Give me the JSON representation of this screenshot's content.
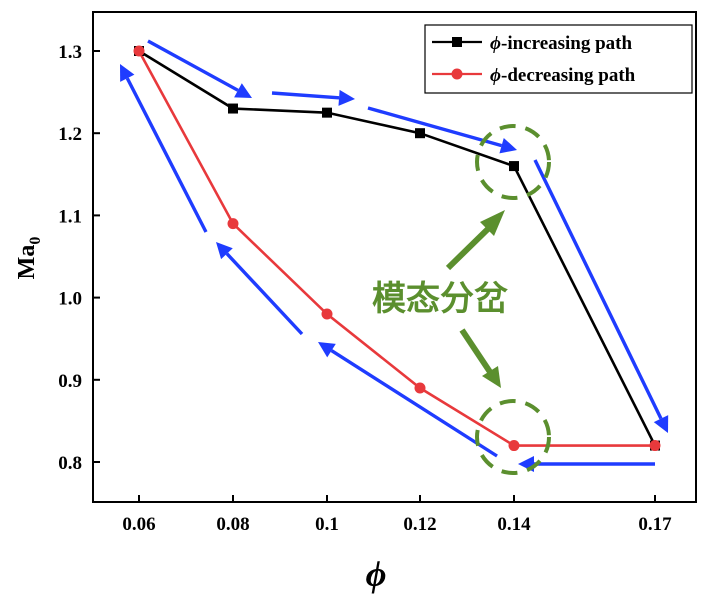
{
  "chart_data": {
    "type": "line",
    "xlabel": "ϕ",
    "ylabel": "Ma",
    "ylabel_sub": "0",
    "x_ticks": [
      "0.06",
      "0.08",
      "0.1",
      "0.12",
      "0.14",
      "0.17"
    ],
    "y_ticks": [
      "0.8",
      "0.9",
      "1.0",
      "1.1",
      "1.2",
      "1.3"
    ],
    "ylim": [
      0.75,
      1.35
    ],
    "series": [
      {
        "name": "ϕ-increasing path",
        "legend_symbol": "ϕ",
        "legend_text": "-increasing path",
        "color": "#000000",
        "marker": "square",
        "x": [
          0.06,
          0.08,
          0.1,
          0.12,
          0.14,
          0.17
        ],
        "y": [
          1.3,
          1.23,
          1.225,
          1.2,
          1.16,
          0.82
        ]
      },
      {
        "name": "ϕ-decreasing path",
        "legend_symbol": "ϕ",
        "legend_text": "-decreasing path",
        "color": "#e8393c",
        "marker": "circle",
        "x": [
          0.06,
          0.08,
          0.1,
          0.12,
          0.14,
          0.17
        ],
        "y": [
          1.3,
          1.09,
          0.98,
          0.89,
          0.82,
          0.82
        ]
      }
    ],
    "annotation": {
      "text": "模态分岔",
      "color": "#5b8f2e",
      "arrow_color": "#1f3cff"
    }
  }
}
